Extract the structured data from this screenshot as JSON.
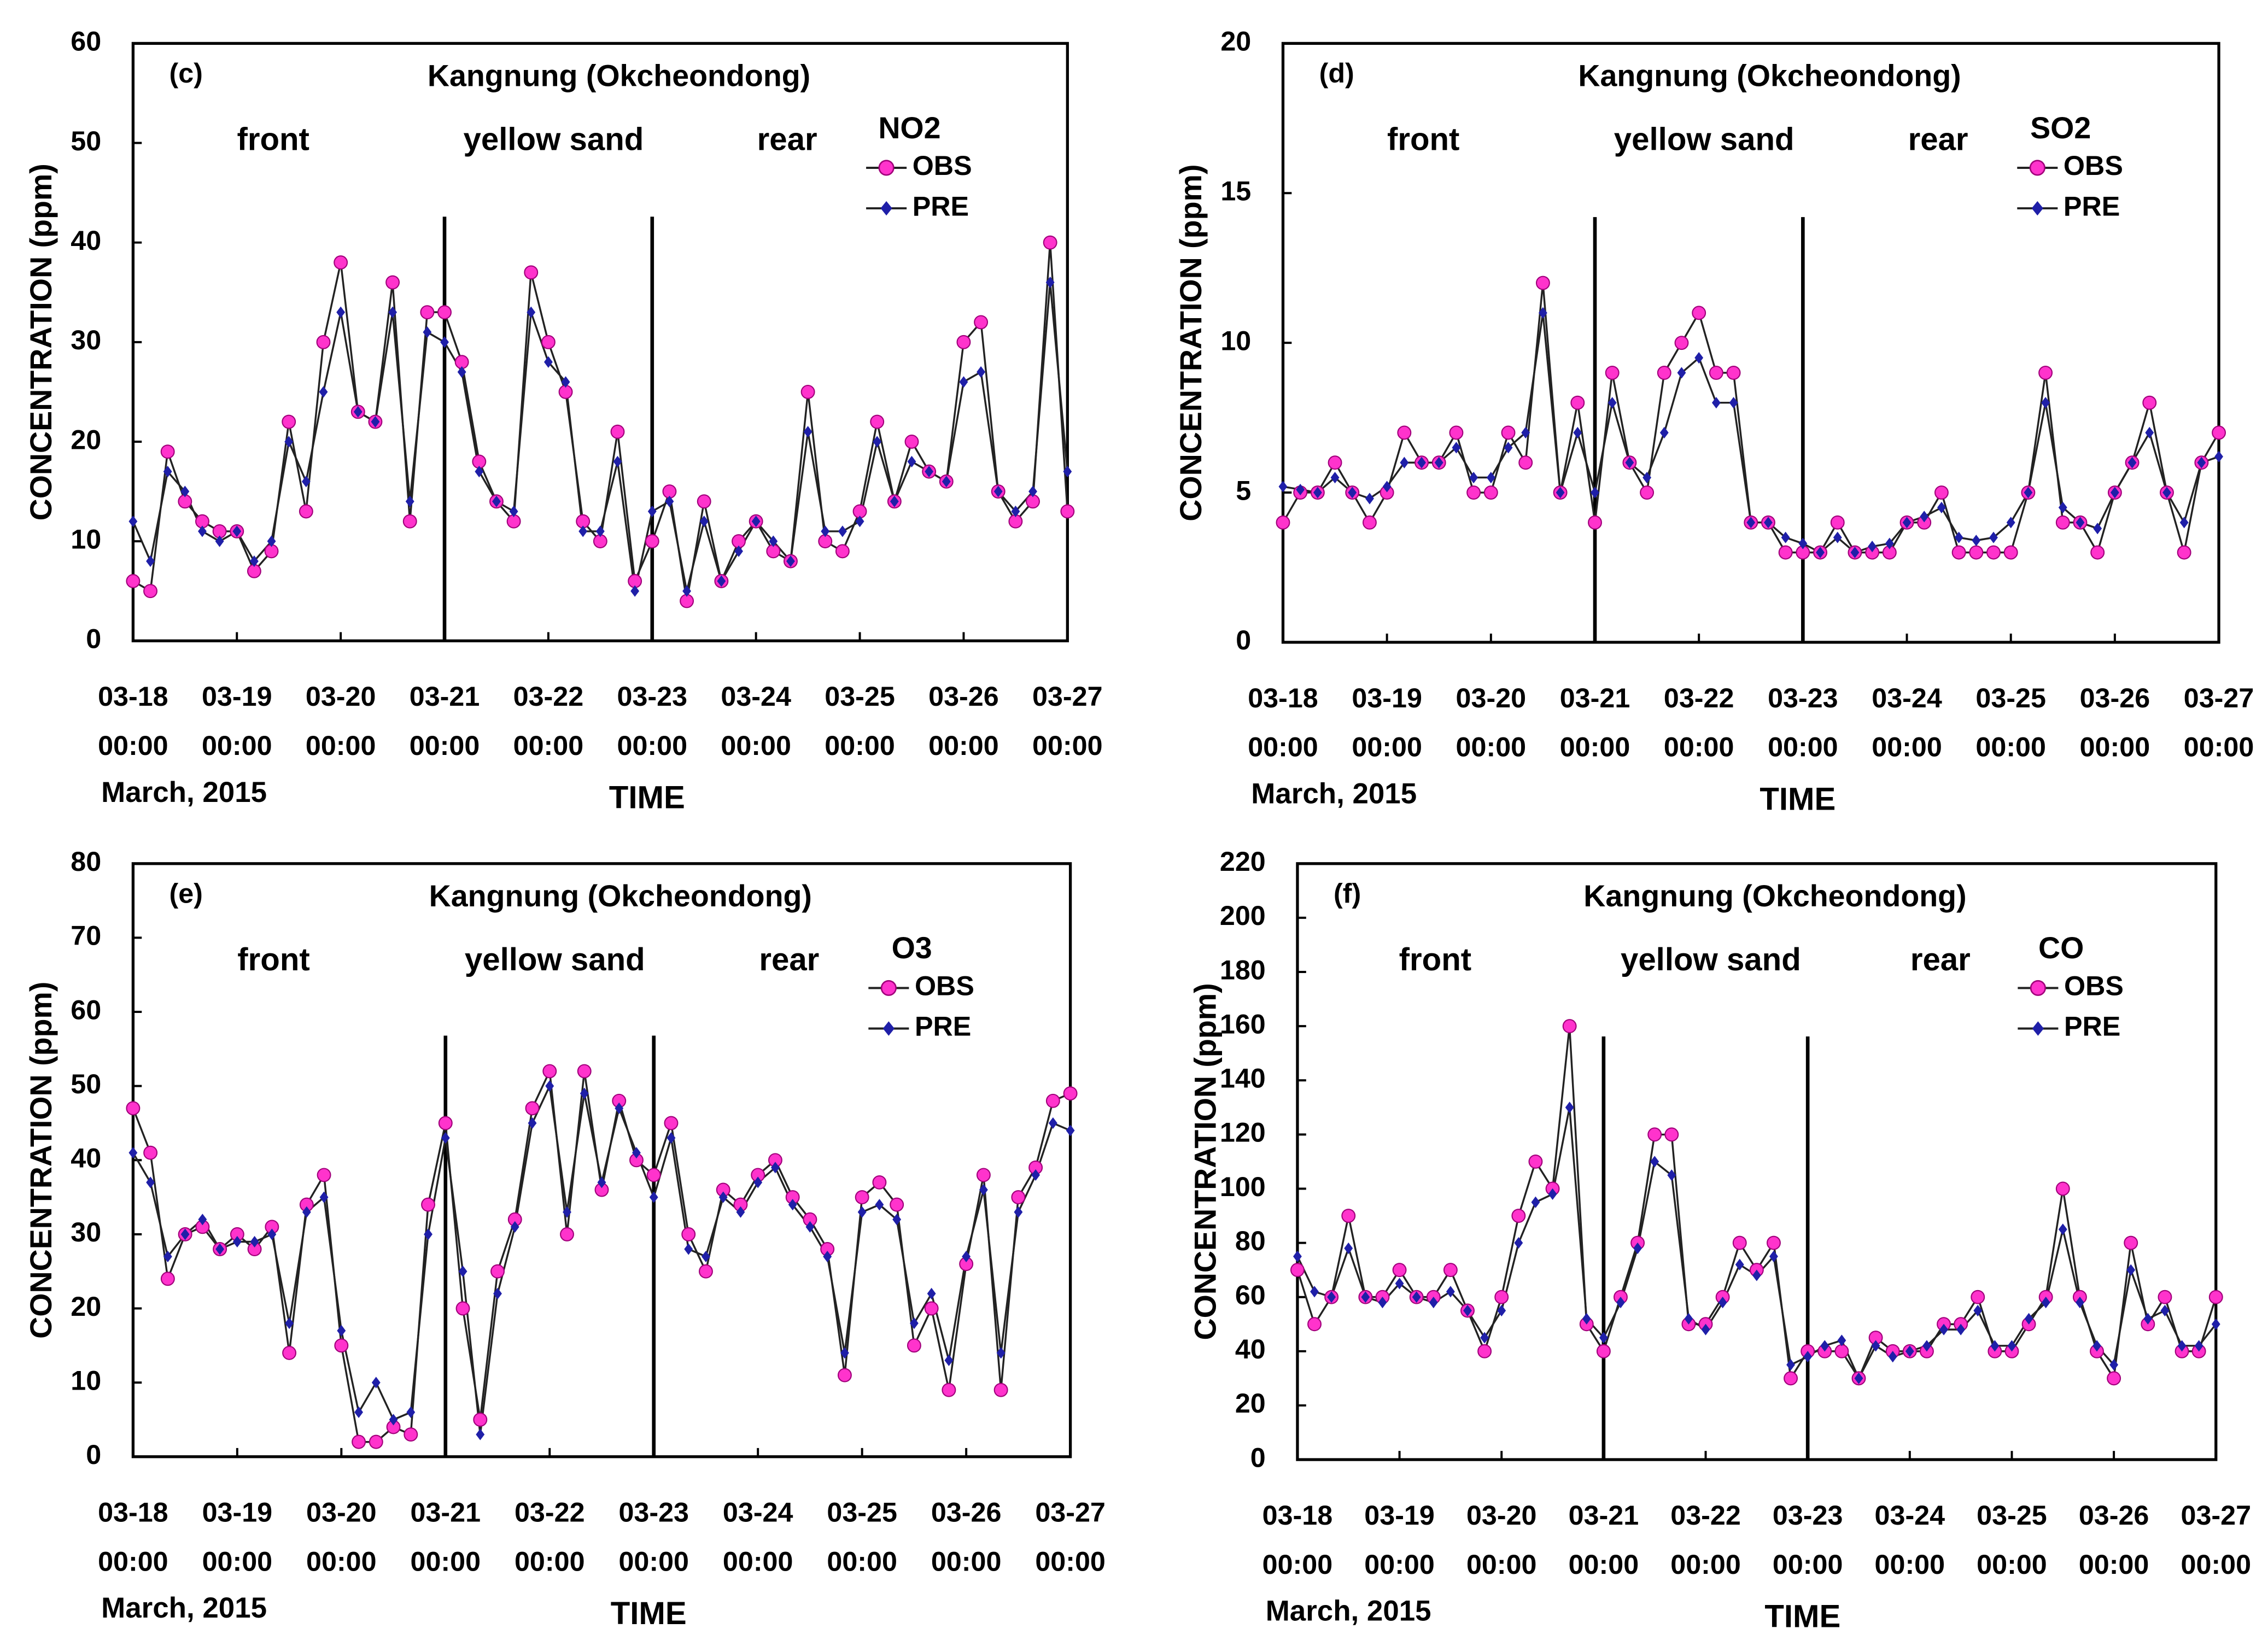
{
  "chart_data": [
    {
      "type": "line",
      "panel_label": "(c)",
      "title": "Kangnung (Okcheondong)",
      "legend_title": "NO2",
      "annotations": [
        "front",
        "yellow sand",
        "rear"
      ],
      "dividers": [
        "03-21 00:00",
        "03-23 00:00"
      ],
      "note": "March, 2015",
      "xlabel": "TIME",
      "ylabel": "CONCENTRATION (ppm)",
      "x": [
        "03-18 00:00",
        "03-18 04:00",
        "03-18 08:00",
        "03-18 12:00",
        "03-18 16:00",
        "03-18 20:00",
        "03-19 00:00",
        "03-19 04:00",
        "03-19 08:00",
        "03-19 12:00",
        "03-19 16:00",
        "03-19 20:00",
        "03-20 00:00",
        "03-20 04:00",
        "03-20 08:00",
        "03-20 12:00",
        "03-20 16:00",
        "03-20 20:00",
        "03-21 00:00",
        "03-21 04:00",
        "03-21 08:00",
        "03-21 12:00",
        "03-21 16:00",
        "03-21 20:00",
        "03-22 00:00",
        "03-22 04:00",
        "03-22 08:00",
        "03-22 12:00",
        "03-22 16:00",
        "03-22 20:00",
        "03-23 00:00",
        "03-23 04:00",
        "03-23 08:00",
        "03-23 12:00",
        "03-23 16:00",
        "03-23 20:00",
        "03-24 00:00",
        "03-24 04:00",
        "03-24 08:00",
        "03-24 12:00",
        "03-24 16:00",
        "03-24 20:00",
        "03-25 00:00",
        "03-25 04:00",
        "03-25 08:00",
        "03-25 12:00",
        "03-25 16:00",
        "03-25 20:00",
        "03-26 00:00",
        "03-26 04:00",
        "03-26 08:00",
        "03-26 12:00",
        "03-26 16:00",
        "03-26 20:00",
        "03-27 00:00"
      ],
      "xlim": [
        "03-18 00:00",
        "03-27 00:00"
      ],
      "xticks": [
        "03-18 00:00",
        "03-19 00:00",
        "03-20 00:00",
        "03-21 00:00",
        "03-22 00:00",
        "03-23 00:00",
        "03-24 00:00",
        "03-25 00:00",
        "03-26 00:00",
        "03-27 00:00"
      ],
      "ylim": [
        0,
        60
      ],
      "yticks": [
        0,
        10,
        20,
        30,
        40,
        50,
        60
      ],
      "series": [
        {
          "name": "OBS",
          "color": "#ff33cc",
          "values": [
            6,
            5,
            19,
            14,
            12,
            11,
            11,
            7,
            9,
            22,
            13,
            30,
            38,
            23,
            22,
            36,
            12,
            33,
            33,
            28,
            18,
            14,
            12,
            37,
            30,
            25,
            12,
            10,
            21,
            6,
            10,
            15,
            4,
            14,
            6,
            10,
            12,
            9,
            8,
            25,
            10,
            9,
            13,
            22,
            14,
            20,
            17,
            16,
            30,
            32,
            15,
            12,
            14,
            40,
            13
          ]
        },
        {
          "name": "PRE",
          "color": "#1f1fa8",
          "values": [
            12,
            8,
            17,
            15,
            11,
            10,
            11,
            8,
            10,
            20,
            16,
            25,
            33,
            23,
            22,
            33,
            14,
            31,
            30,
            27,
            17,
            14,
            13,
            33,
            28,
            26,
            11,
            11,
            18,
            5,
            13,
            14,
            5,
            12,
            6,
            9,
            12,
            10,
            8,
            21,
            11,
            11,
            12,
            20,
            14,
            18,
            17,
            16,
            26,
            27,
            15,
            13,
            15,
            36,
            17
          ]
        }
      ]
    },
    {
      "type": "line",
      "panel_label": "(d)",
      "title": "Kangnung (Okcheondong)",
      "legend_title": "SO2",
      "annotations": [
        "front",
        "yellow sand",
        "rear"
      ],
      "dividers": [
        "03-21 00:00",
        "03-23 00:00"
      ],
      "note": "March, 2015",
      "xlabel": "TIME",
      "ylabel": "CONCENTRATION (ppm)",
      "x": [
        "03-18 00:00",
        "03-18 04:00",
        "03-18 08:00",
        "03-18 12:00",
        "03-18 16:00",
        "03-18 20:00",
        "03-19 00:00",
        "03-19 04:00",
        "03-19 08:00",
        "03-19 12:00",
        "03-19 16:00",
        "03-19 20:00",
        "03-20 00:00",
        "03-20 04:00",
        "03-20 08:00",
        "03-20 12:00",
        "03-20 16:00",
        "03-20 20:00",
        "03-21 00:00",
        "03-21 04:00",
        "03-21 08:00",
        "03-21 12:00",
        "03-21 16:00",
        "03-21 20:00",
        "03-22 00:00",
        "03-22 04:00",
        "03-22 08:00",
        "03-22 12:00",
        "03-22 16:00",
        "03-22 20:00",
        "03-23 00:00",
        "03-23 04:00",
        "03-23 08:00",
        "03-23 12:00",
        "03-23 16:00",
        "03-23 20:00",
        "03-24 00:00",
        "03-24 04:00",
        "03-24 08:00",
        "03-24 12:00",
        "03-24 16:00",
        "03-24 20:00",
        "03-25 00:00",
        "03-25 04:00",
        "03-25 08:00",
        "03-25 12:00",
        "03-25 16:00",
        "03-25 20:00",
        "03-26 00:00",
        "03-26 04:00",
        "03-26 08:00",
        "03-26 12:00",
        "03-26 16:00",
        "03-26 20:00",
        "03-27 00:00"
      ],
      "xlim": [
        "03-18 00:00",
        "03-27 00:00"
      ],
      "xticks": [
        "03-18 00:00",
        "03-19 00:00",
        "03-20 00:00",
        "03-21 00:00",
        "03-22 00:00",
        "03-23 00:00",
        "03-24 00:00",
        "03-25 00:00",
        "03-26 00:00",
        "03-27 00:00"
      ],
      "ylim": [
        0,
        20
      ],
      "yticks": [
        0,
        5,
        10,
        15,
        20
      ],
      "series": [
        {
          "name": "OBS",
          "color": "#ff33cc",
          "values": [
            4,
            5,
            5,
            6,
            5,
            4,
            5,
            7,
            6,
            6,
            7,
            5,
            5,
            7,
            6,
            12,
            5,
            8,
            4,
            9,
            6,
            5,
            9,
            10,
            11,
            9,
            9,
            4,
            4,
            3,
            3,
            3,
            4,
            3,
            3,
            3,
            4,
            4,
            5,
            3,
            3,
            3,
            3,
            5,
            9,
            4,
            4,
            3,
            5,
            6,
            8,
            5,
            3,
            6,
            7
          ]
        },
        {
          "name": "PRE",
          "color": "#1f1fa8",
          "values": [
            5.2,
            5.1,
            5,
            5.5,
            5,
            4.8,
            5.2,
            6,
            6,
            6,
            6.5,
            5.5,
            5.5,
            6.5,
            7,
            11,
            5,
            7,
            5,
            8,
            6,
            5.5,
            7,
            9,
            9.5,
            8,
            8,
            4,
            4,
            3.5,
            3.3,
            3,
            3.5,
            3,
            3.2,
            3.3,
            4,
            4.2,
            4.5,
            3.5,
            3.4,
            3.5,
            4,
            5,
            8,
            4.5,
            4,
            3.8,
            5,
            6,
            7,
            5,
            4,
            6,
            6.2
          ]
        }
      ]
    },
    {
      "type": "line",
      "panel_label": "(e)",
      "title": "Kangnung (Okcheondong)",
      "legend_title": "O3",
      "annotations": [
        "front",
        "yellow sand",
        "rear"
      ],
      "dividers": [
        "03-21 00:00",
        "03-23 00:00"
      ],
      "note": "March, 2015",
      "xlabel": "TIME",
      "ylabel": "CONCENTRATION (ppm)",
      "x": [
        "03-18 00:00",
        "03-18 04:00",
        "03-18 08:00",
        "03-18 12:00",
        "03-18 16:00",
        "03-18 20:00",
        "03-19 00:00",
        "03-19 04:00",
        "03-19 08:00",
        "03-19 12:00",
        "03-19 16:00",
        "03-19 20:00",
        "03-20 00:00",
        "03-20 04:00",
        "03-20 08:00",
        "03-20 12:00",
        "03-20 16:00",
        "03-20 20:00",
        "03-21 00:00",
        "03-21 04:00",
        "03-21 08:00",
        "03-21 12:00",
        "03-21 16:00",
        "03-21 20:00",
        "03-22 00:00",
        "03-22 04:00",
        "03-22 08:00",
        "03-22 12:00",
        "03-22 16:00",
        "03-22 20:00",
        "03-23 00:00",
        "03-23 04:00",
        "03-23 08:00",
        "03-23 12:00",
        "03-23 16:00",
        "03-23 20:00",
        "03-24 00:00",
        "03-24 04:00",
        "03-24 08:00",
        "03-24 12:00",
        "03-24 16:00",
        "03-24 20:00",
        "03-25 00:00",
        "03-25 04:00",
        "03-25 08:00",
        "03-25 12:00",
        "03-25 16:00",
        "03-25 20:00",
        "03-26 00:00",
        "03-26 04:00",
        "03-26 08:00",
        "03-26 12:00",
        "03-26 16:00",
        "03-26 20:00",
        "03-27 00:00"
      ],
      "xlim": [
        "03-18 00:00",
        "03-27 00:00"
      ],
      "xticks": [
        "03-18 00:00",
        "03-19 00:00",
        "03-20 00:00",
        "03-21 00:00",
        "03-22 00:00",
        "03-23 00:00",
        "03-24 00:00",
        "03-25 00:00",
        "03-26 00:00",
        "03-27 00:00"
      ],
      "ylim": [
        0,
        80
      ],
      "yticks": [
        0,
        10,
        20,
        30,
        40,
        50,
        60,
        70,
        80
      ],
      "series": [
        {
          "name": "OBS",
          "color": "#ff33cc",
          "values": [
            47,
            41,
            24,
            30,
            31,
            28,
            30,
            28,
            31,
            14,
            34,
            38,
            15,
            2,
            2,
            4,
            3,
            34,
            45,
            20,
            5,
            25,
            32,
            47,
            52,
            30,
            52,
            36,
            48,
            40,
            38,
            45,
            30,
            25,
            36,
            34,
            38,
            40,
            35,
            32,
            28,
            11,
            35,
            37,
            34,
            15,
            20,
            9,
            26,
            38,
            9,
            35,
            39,
            48,
            49
          ]
        },
        {
          "name": "PRE",
          "color": "#1f1fa8",
          "values": [
            41,
            37,
            27,
            30,
            32,
            28,
            29,
            29,
            30,
            18,
            33,
            35,
            17,
            6,
            10,
            5,
            6,
            30,
            43,
            25,
            3,
            22,
            31,
            45,
            50,
            33,
            49,
            37,
            47,
            41,
            35,
            43,
            28,
            27,
            35,
            33,
            37,
            39,
            34,
            31,
            27,
            14,
            33,
            34,
            32,
            18,
            22,
            13,
            27,
            36,
            14,
            33,
            38,
            45,
            44
          ]
        }
      ]
    },
    {
      "type": "line",
      "panel_label": "(f)",
      "title": "Kangnung (Okcheondong)",
      "legend_title": "CO",
      "annotations": [
        "front",
        "yellow sand",
        "rear"
      ],
      "dividers": [
        "03-21 00:00",
        "03-23 00:00"
      ],
      "note": "March, 2015",
      "xlabel": "TIME",
      "ylabel": "CONCENTRATION (ppm)",
      "x": [
        "03-18 00:00",
        "03-18 04:00",
        "03-18 08:00",
        "03-18 12:00",
        "03-18 16:00",
        "03-18 20:00",
        "03-19 00:00",
        "03-19 04:00",
        "03-19 08:00",
        "03-19 12:00",
        "03-19 16:00",
        "03-19 20:00",
        "03-20 00:00",
        "03-20 04:00",
        "03-20 08:00",
        "03-20 12:00",
        "03-20 16:00",
        "03-20 20:00",
        "03-21 00:00",
        "03-21 04:00",
        "03-21 08:00",
        "03-21 12:00",
        "03-21 16:00",
        "03-21 20:00",
        "03-22 00:00",
        "03-22 04:00",
        "03-22 08:00",
        "03-22 12:00",
        "03-22 16:00",
        "03-22 20:00",
        "03-23 00:00",
        "03-23 04:00",
        "03-23 08:00",
        "03-23 12:00",
        "03-23 16:00",
        "03-23 20:00",
        "03-24 00:00",
        "03-24 04:00",
        "03-24 08:00",
        "03-24 12:00",
        "03-24 16:00",
        "03-24 20:00",
        "03-25 00:00",
        "03-25 04:00",
        "03-25 08:00",
        "03-25 12:00",
        "03-25 16:00",
        "03-25 20:00",
        "03-26 00:00",
        "03-26 04:00",
        "03-26 08:00",
        "03-26 12:00",
        "03-26 16:00",
        "03-26 20:00",
        "03-27 00:00"
      ],
      "xlim": [
        "03-18 00:00",
        "03-27 00:00"
      ],
      "xticks": [
        "03-18 00:00",
        "03-19 00:00",
        "03-20 00:00",
        "03-21 00:00",
        "03-22 00:00",
        "03-23 00:00",
        "03-24 00:00",
        "03-25 00:00",
        "03-26 00:00",
        "03-27 00:00"
      ],
      "ylim": [
        0,
        220
      ],
      "yticks": [
        0,
        20,
        40,
        60,
        80,
        100,
        120,
        140,
        160,
        180,
        200,
        220
      ],
      "series": [
        {
          "name": "OBS",
          "color": "#ff33cc",
          "values": [
            70,
            50,
            60,
            90,
            60,
            60,
            70,
            60,
            60,
            70,
            55,
            40,
            60,
            90,
            110,
            100,
            160,
            50,
            40,
            60,
            80,
            120,
            120,
            50,
            50,
            60,
            80,
            70,
            80,
            30,
            40,
            40,
            40,
            30,
            45,
            40,
            40,
            40,
            50,
            50,
            60,
            40,
            40,
            50,
            60,
            100,
            60,
            40,
            30,
            80,
            50,
            60,
            40,
            40,
            60
          ]
        },
        {
          "name": "PRE",
          "color": "#1f1fa8",
          "values": [
            75,
            62,
            60,
            78,
            60,
            58,
            65,
            60,
            58,
            62,
            55,
            45,
            55,
            80,
            95,
            98,
            130,
            52,
            45,
            58,
            78,
            110,
            105,
            52,
            48,
            58,
            72,
            68,
            75,
            35,
            38,
            42,
            44,
            30,
            42,
            38,
            40,
            42,
            48,
            48,
            55,
            42,
            42,
            52,
            58,
            85,
            58,
            42,
            35,
            70,
            52,
            55,
            42,
            42,
            50
          ]
        }
      ]
    }
  ]
}
